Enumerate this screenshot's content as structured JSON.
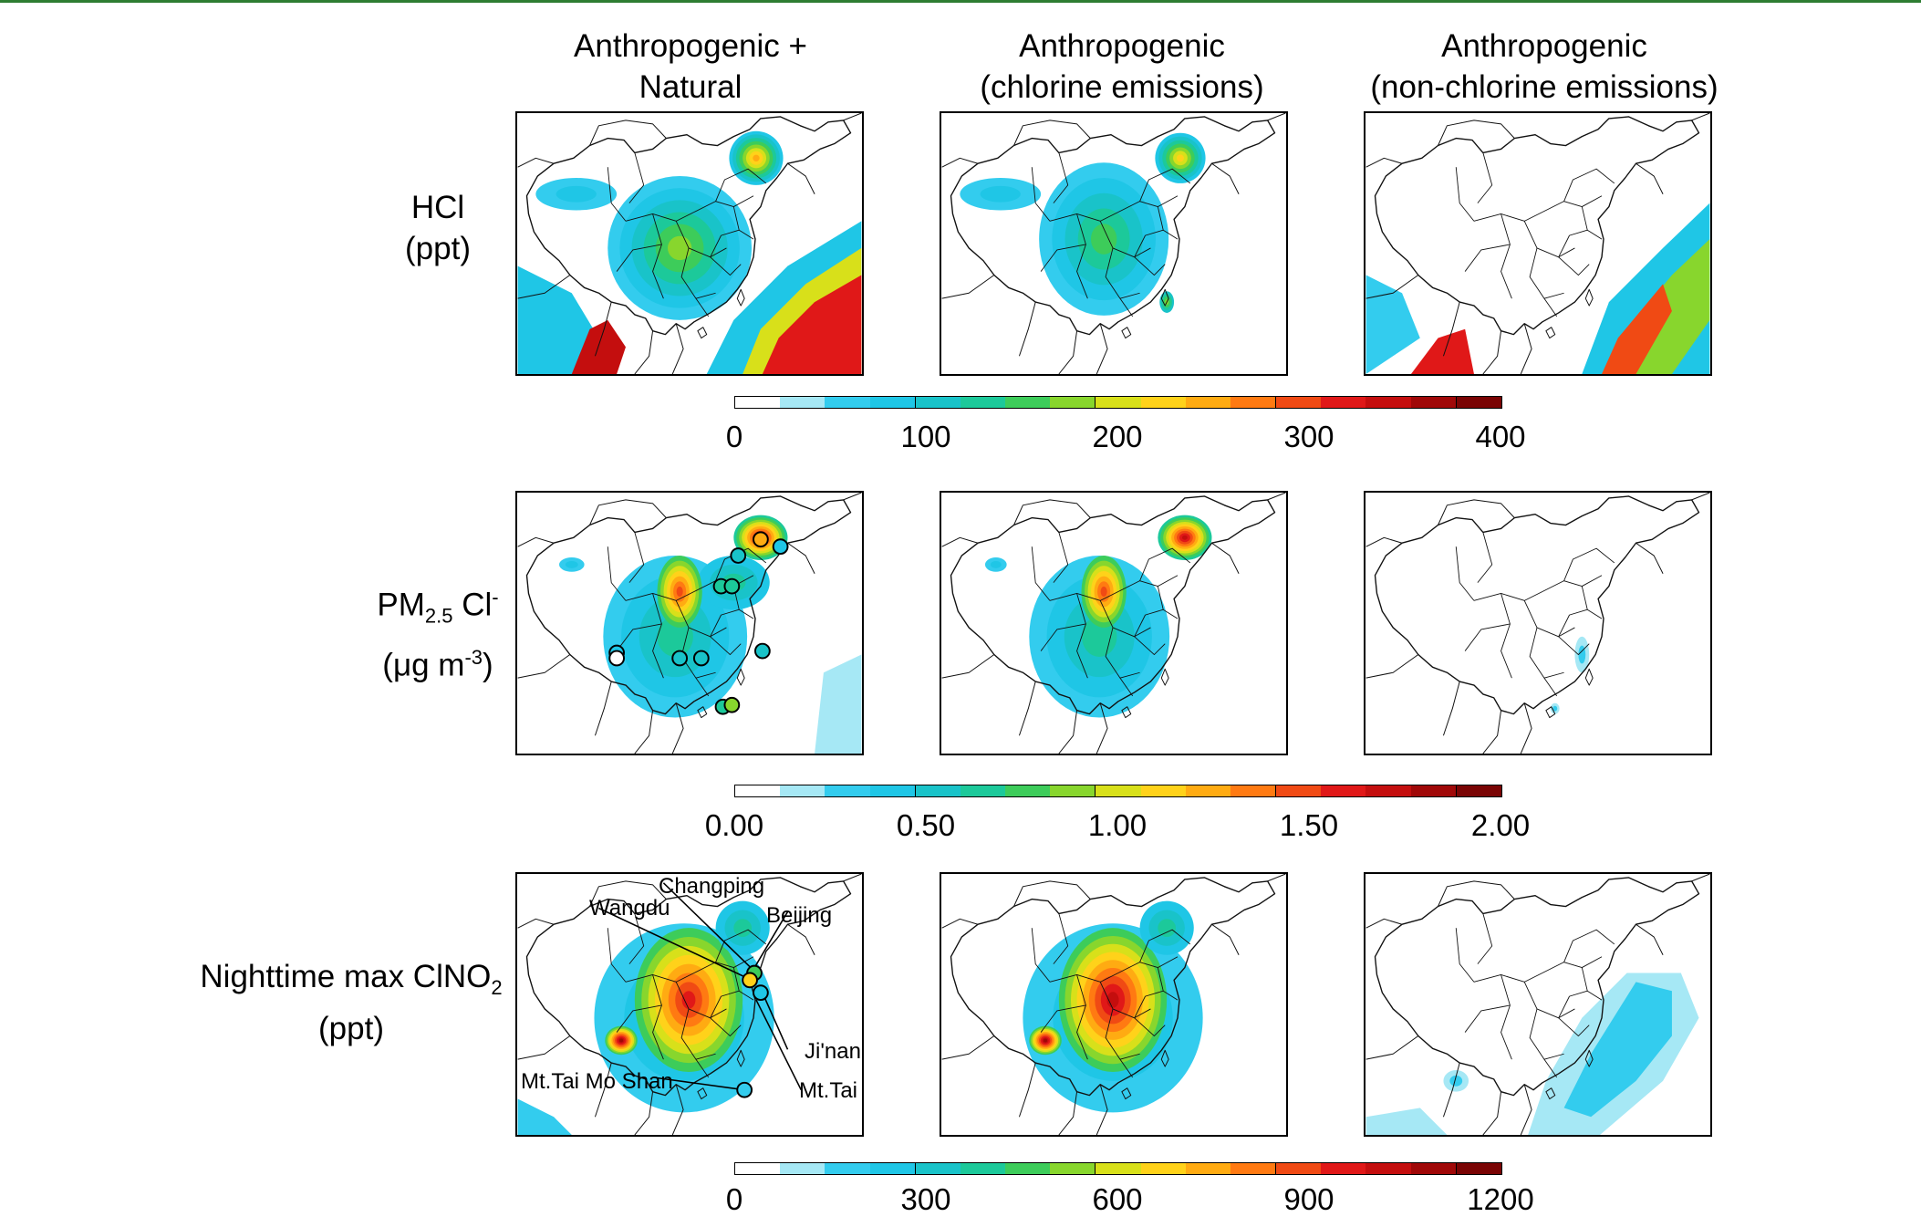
{
  "columns": [
    {
      "line1": "Anthropogenic +",
      "line2": "Natural"
    },
    {
      "line1": "Anthropogenic",
      "line2": "(chlorine emissions)"
    },
    {
      "line1": "Anthropogenic",
      "line2": "(non-chlorine emissions)"
    }
  ],
  "rows": [
    {
      "name": "HCl",
      "unit": "(ppt)"
    },
    {
      "name_main": "PM",
      "name_sub": "2.5",
      "name_species": " Cl",
      "name_sup": "-",
      "unit_main": "(μg m",
      "unit_sup": "-3",
      "unit_end": ")"
    },
    {
      "name_main": "Nighttime max ClNO",
      "name_sub": "2",
      "unit": "(ppt)"
    }
  ],
  "colorbars": [
    {
      "ticks": [
        "0",
        "100",
        "200",
        "300",
        "400"
      ]
    },
    {
      "ticks": [
        "0.00",
        "0.50",
        "1.00",
        "1.50",
        "2.00"
      ]
    },
    {
      "ticks": [
        "0",
        "300",
        "600",
        "900",
        "1200"
      ]
    }
  ],
  "colormap": [
    "#ffffff",
    "#a6e8f5",
    "#33ccee",
    "#1fc6e6",
    "#19c3c9",
    "#1cc99a",
    "#3dcc5a",
    "#88d62d",
    "#d8e01a",
    "#ffd21a",
    "#ffab12",
    "#ff7a12",
    "#f04a14",
    "#e01818",
    "#c40e0e",
    "#a00808",
    "#7a0404"
  ],
  "site_labels": {
    "changping": "Changping",
    "wangdu": "Wangdu",
    "beijing": "Beijing",
    "jinan": "Ji'nan",
    "mttai": "Mt.Tai",
    "mttaimoshan": "Mt.Tai Mo Shan"
  }
}
